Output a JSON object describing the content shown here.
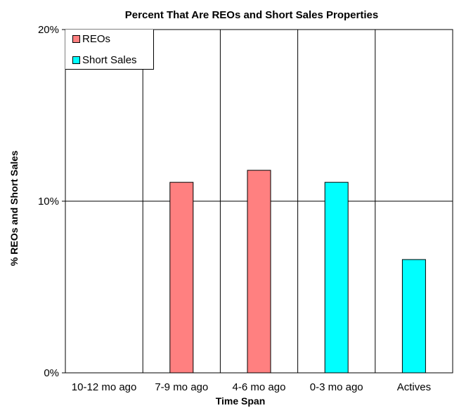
{
  "chart_data": {
    "type": "bar",
    "title": "Percent That Are REOs and Short Sales Properties",
    "xlabel": "Time Span",
    "ylabel": "% REOs and Short Sales",
    "categories": [
      "10-12 mo ago",
      "7-9 mo ago",
      "4-6 mo ago",
      "0-3 mo ago",
      "Actives"
    ],
    "series": [
      {
        "name": "REOs",
        "color": "#ff8080",
        "values": [
          0,
          11.1,
          11.8,
          0,
          0
        ]
      },
      {
        "name": "Short Sales",
        "color": "#00ffff",
        "values": [
          0,
          0,
          0,
          11.1,
          6.6
        ]
      }
    ],
    "ylim": [
      0,
      20
    ],
    "yticks": [
      {
        "value": 0,
        "label": "0%"
      },
      {
        "value": 10,
        "label": "10%"
      },
      {
        "value": 20,
        "label": "20%"
      }
    ],
    "grid": true,
    "legend_position": "top-left"
  }
}
